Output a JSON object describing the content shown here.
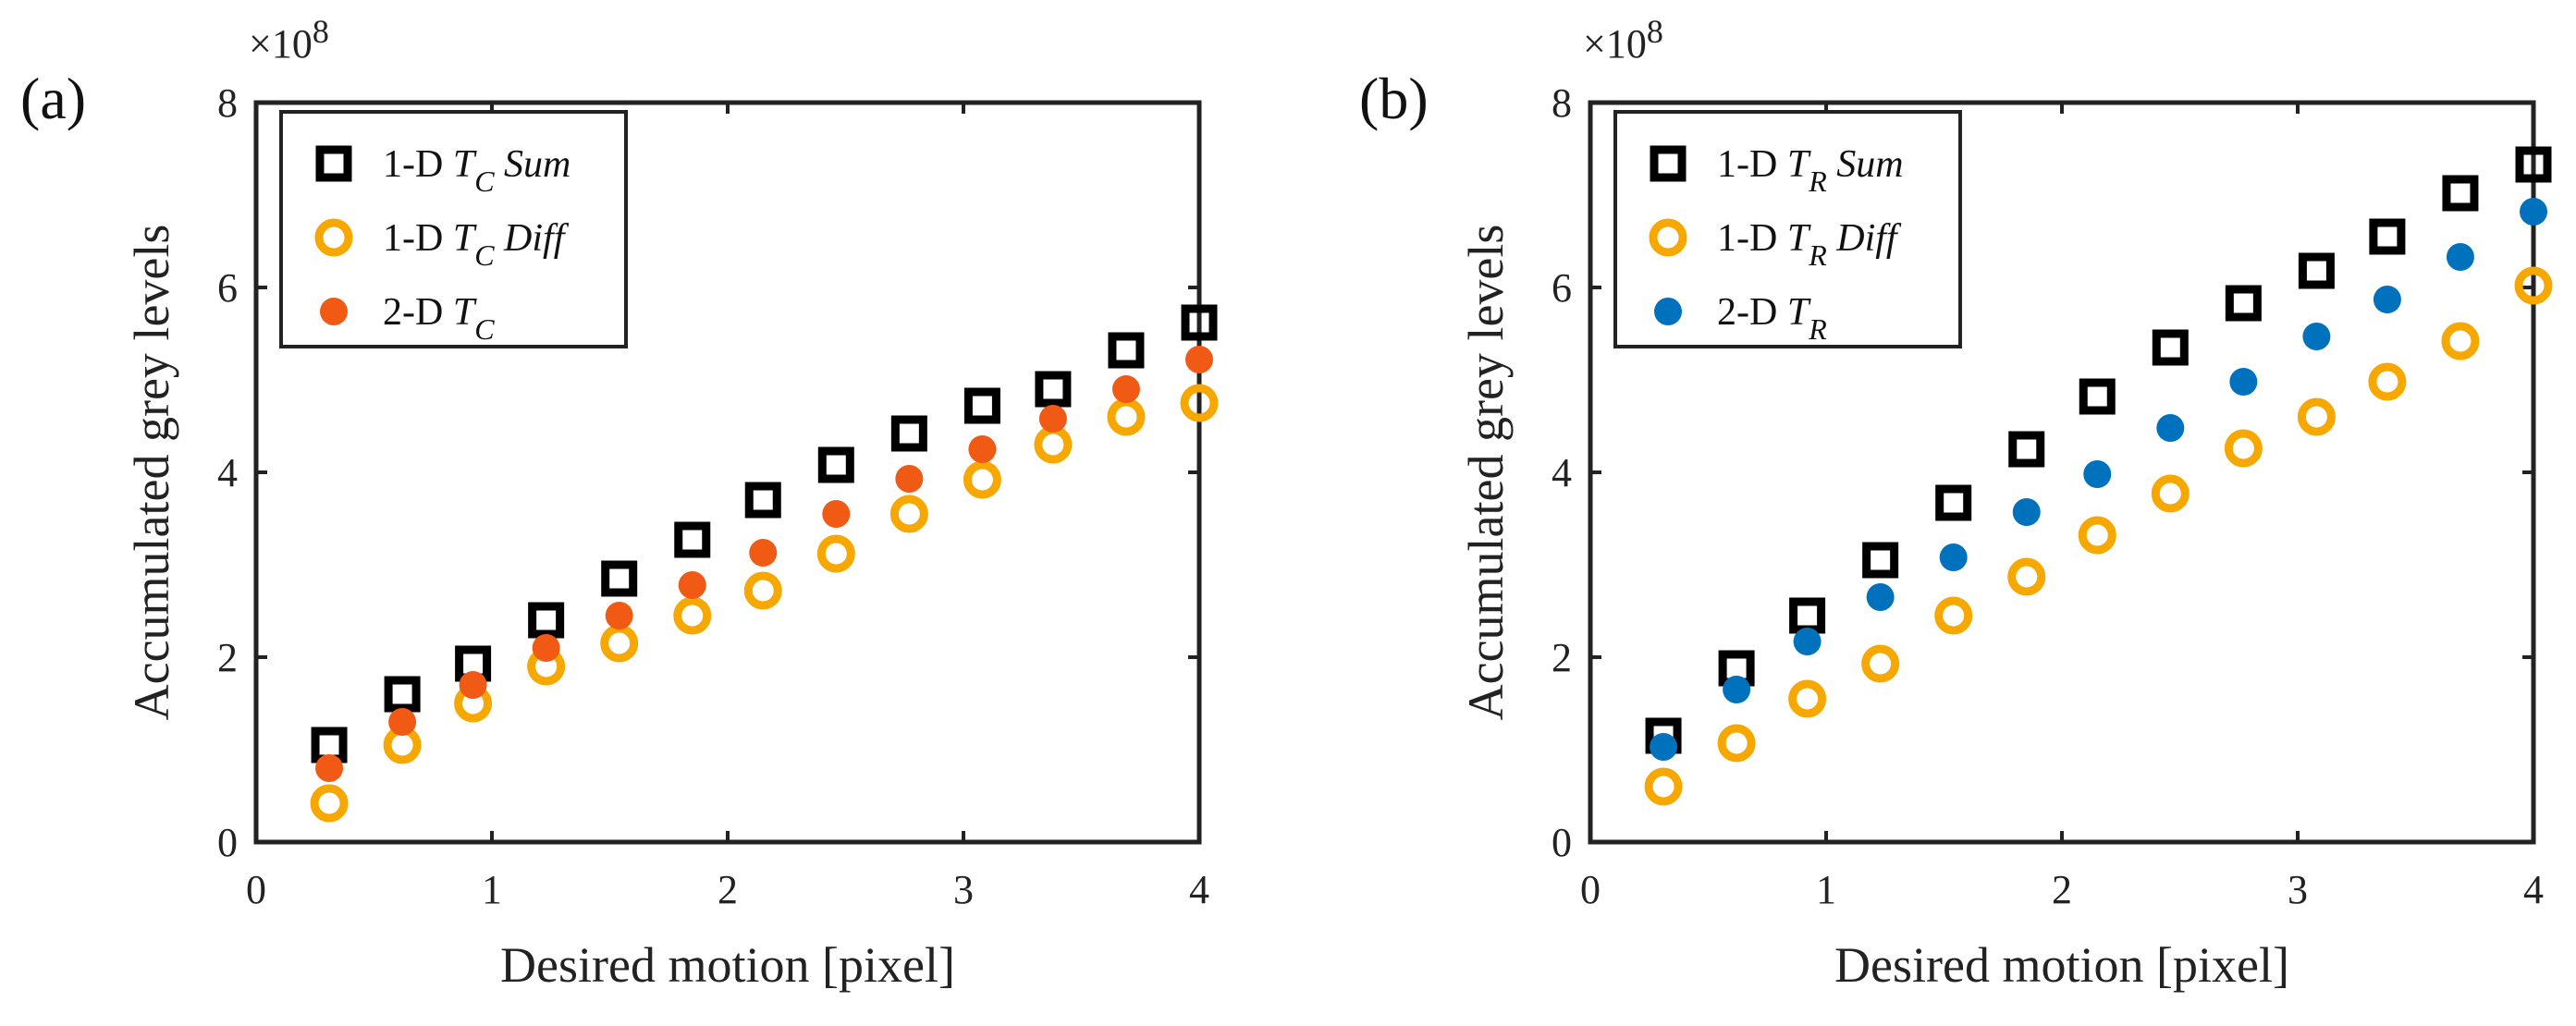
{
  "chart_data": [
    {
      "type": "scatter",
      "panel_label": "(a)",
      "exponent_label": "×10",
      "exponent_power": "8",
      "xlabel": "Desired motion [pixel]",
      "ylabel": "Accumulated grey levels",
      "xlim": [
        0,
        4
      ],
      "ylim": [
        0,
        8
      ],
      "y_scale_factor": 100000000.0,
      "xticks": [
        "0",
        "1",
        "2",
        "3",
        "4"
      ],
      "yticks": [
        "0",
        "2",
        "4",
        "6",
        "8"
      ],
      "grid": false,
      "legend_position": "top-left",
      "x": [
        0.31,
        0.62,
        0.92,
        1.23,
        1.54,
        1.85,
        2.15,
        2.46,
        2.77,
        3.08,
        3.38,
        3.69,
        4.0
      ],
      "series": [
        {
          "prefix": "1-D ",
          "var": "T",
          "sub": "C",
          "suffix": " Sum",
          "marker": "open-square",
          "color": "#000000",
          "values": [
            1.05,
            1.6,
            1.93,
            2.4,
            2.85,
            3.27,
            3.7,
            4.08,
            4.42,
            4.72,
            4.9,
            5.32,
            5.62
          ]
        },
        {
          "prefix": "1-D ",
          "var": "T",
          "sub": "C",
          "suffix": " Diff",
          "marker": "open-circle",
          "color": "#F7A800",
          "values": [
            0.42,
            1.05,
            1.5,
            1.9,
            2.15,
            2.45,
            2.72,
            3.12,
            3.55,
            3.92,
            4.3,
            4.6,
            4.75
          ]
        },
        {
          "prefix": "2-D ",
          "var": "T",
          "sub": "C",
          "suffix": "",
          "marker": "filled-circle",
          "color": "#F05A14",
          "values": [
            0.8,
            1.3,
            1.7,
            2.1,
            2.45,
            2.78,
            3.13,
            3.55,
            3.93,
            4.25,
            4.58,
            4.9,
            5.22
          ]
        }
      ]
    },
    {
      "type": "scatter",
      "panel_label": "(b)",
      "exponent_label": "×10",
      "exponent_power": "8",
      "xlabel": "Desired motion [pixel]",
      "ylabel": "Accumulated grey levels",
      "xlim": [
        0,
        4
      ],
      "ylim": [
        0,
        8
      ],
      "y_scale_factor": 100000000.0,
      "xticks": [
        "0",
        "1",
        "2",
        "3",
        "4"
      ],
      "yticks": [
        "0",
        "2",
        "4",
        "6",
        "8"
      ],
      "grid": false,
      "legend_position": "top-left",
      "x": [
        0.31,
        0.62,
        0.92,
        1.23,
        1.54,
        1.85,
        2.15,
        2.46,
        2.77,
        3.08,
        3.38,
        3.69,
        4.0
      ],
      "series": [
        {
          "prefix": "1-D ",
          "var": "T",
          "sub": "R",
          "suffix": " Sum",
          "marker": "open-square",
          "color": "#000000",
          "values": [
            1.15,
            1.88,
            2.45,
            3.05,
            3.67,
            4.25,
            4.82,
            5.35,
            5.83,
            6.18,
            6.55,
            7.02,
            7.33
          ]
        },
        {
          "prefix": "1-D ",
          "var": "T",
          "sub": "R",
          "suffix": " Diff",
          "marker": "open-circle",
          "color": "#F7A800",
          "values": [
            0.6,
            1.07,
            1.55,
            1.93,
            2.45,
            2.87,
            3.32,
            3.77,
            4.26,
            4.6,
            4.98,
            5.42,
            6.02
          ]
        },
        {
          "prefix": "2-D ",
          "var": "T",
          "sub": "R",
          "suffix": "",
          "marker": "filled-circle",
          "color": "#0072BD",
          "values": [
            1.03,
            1.65,
            2.17,
            2.65,
            3.08,
            3.57,
            3.98,
            4.48,
            4.98,
            5.47,
            5.87,
            6.33,
            6.82
          ]
        }
      ]
    }
  ]
}
